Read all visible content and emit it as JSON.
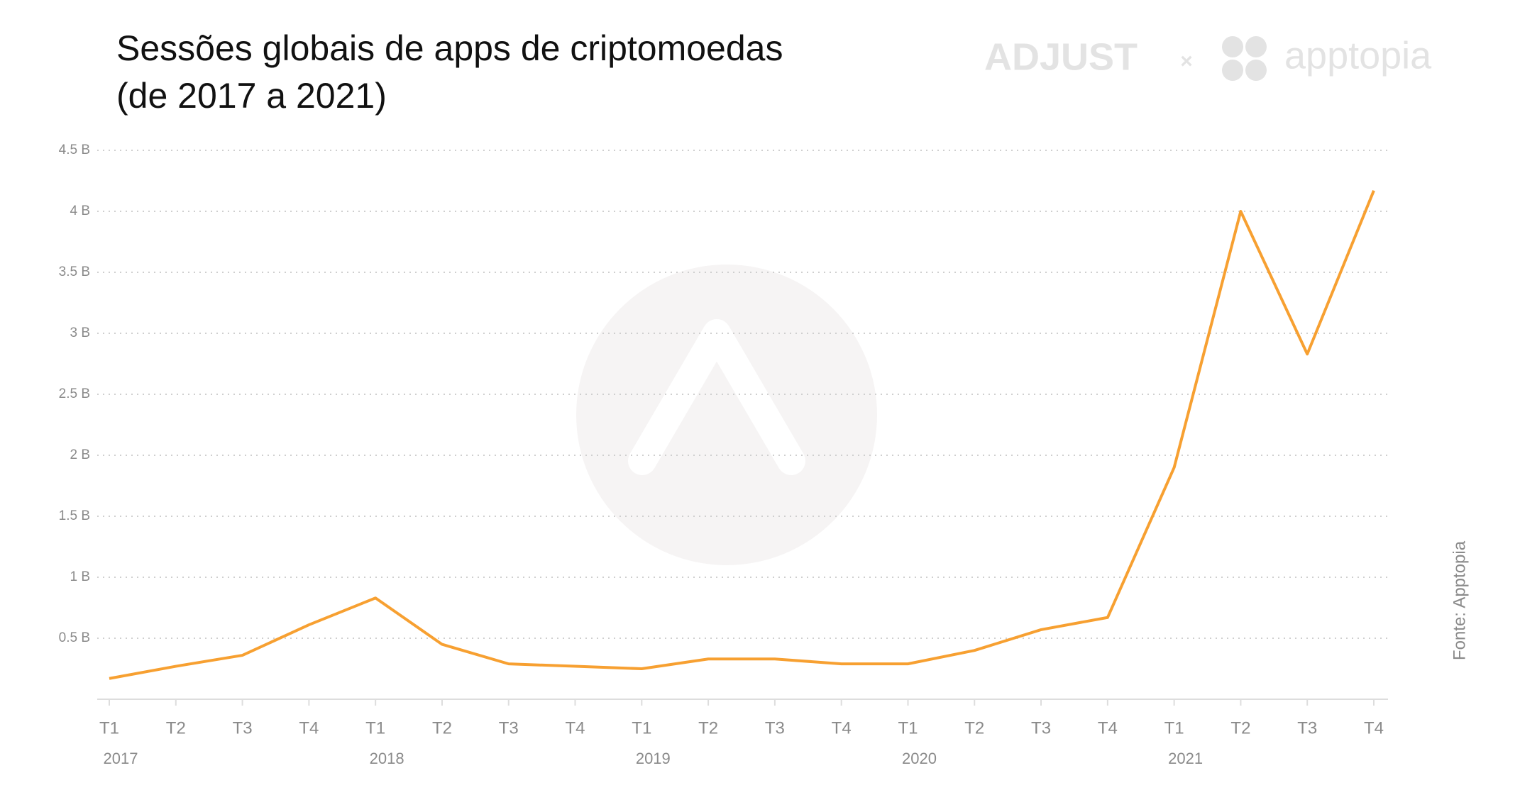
{
  "chart_data": {
    "type": "line",
    "title": [
      "Sessões globais de apps de criptomoedas",
      "(de 2017 a 2021)"
    ],
    "brand_left": "ADJUST",
    "brand_separator": "×",
    "brand_right": "apptopia",
    "source": "Fonte: Apptopia",
    "categories": [
      "T1",
      "T2",
      "T3",
      "T4",
      "T1",
      "T2",
      "T3",
      "T4",
      "T1",
      "T2",
      "T3",
      "T4",
      "T1",
      "T2",
      "T3",
      "T4",
      "T1",
      "T2",
      "T3",
      "T4"
    ],
    "x_group_labels": [
      "2017",
      null,
      null,
      null,
      "2018",
      null,
      null,
      null,
      "2019",
      null,
      null,
      null,
      "2020",
      null,
      null,
      null,
      "2021",
      null,
      null,
      null
    ],
    "series": [
      {
        "color": "#f7a031",
        "values": [
          0.17,
          0.27,
          0.36,
          0.61,
          0.83,
          0.45,
          0.29,
          0.27,
          0.25,
          0.33,
          0.33,
          0.29,
          0.29,
          0.4,
          0.57,
          0.67,
          1.9,
          4.0,
          2.83,
          4.17
        ]
      }
    ],
    "ylim": [
      0,
      4.5
    ],
    "yticks": [
      {
        "value": 0.5,
        "label": "0.5 B"
      },
      {
        "value": 1,
        "label": "1 B"
      },
      {
        "value": 1.5,
        "label": "1.5 B"
      },
      {
        "value": 2,
        "label": "2 B"
      },
      {
        "value": 2.5,
        "label": "2.5 B"
      },
      {
        "value": 3,
        "label": "3 B"
      },
      {
        "value": 3.5,
        "label": "3.5 B"
      },
      {
        "value": 4,
        "label": "4 B"
      },
      {
        "value": 4.5,
        "label": "4.5 B"
      }
    ],
    "grid": true
  }
}
